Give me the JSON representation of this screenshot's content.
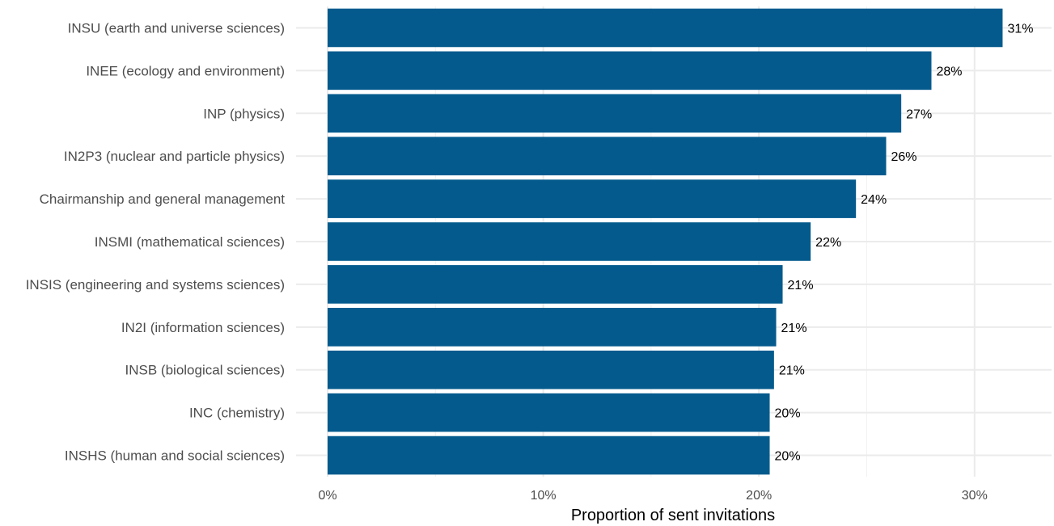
{
  "chart_data": {
    "type": "bar",
    "orientation": "horizontal",
    "categories": [
      "INSU (earth and universe sciences)",
      "INEE (ecology and environment)",
      "INP (physics)",
      "IN2P3 (nuclear and particle physics)",
      "Chairmanship and general management",
      "INSMI (mathematical sciences)",
      "INSIS (engineering and systems sciences)",
      "IN2I (information sciences)",
      "INSB (biological sciences)",
      "INC (chemistry)",
      "INSHS (human and social sciences)"
    ],
    "values": [
      0.313,
      0.28,
      0.266,
      0.259,
      0.245,
      0.224,
      0.211,
      0.208,
      0.207,
      0.205,
      0.205
    ],
    "value_labels": [
      "31%",
      "28%",
      "27%",
      "26%",
      "24%",
      "22%",
      "21%",
      "21%",
      "21%",
      "20%",
      "20%"
    ],
    "xlabel": "Proportion of sent invitations",
    "ylabel": "",
    "xlim": [
      0,
      0.33
    ],
    "xticks": [
      0,
      0.1,
      0.2,
      0.3
    ],
    "xtick_labels": [
      "0%",
      "10%",
      "20%",
      "30%"
    ],
    "grid": true,
    "legend": "none",
    "bar_color": "#045a8d"
  }
}
